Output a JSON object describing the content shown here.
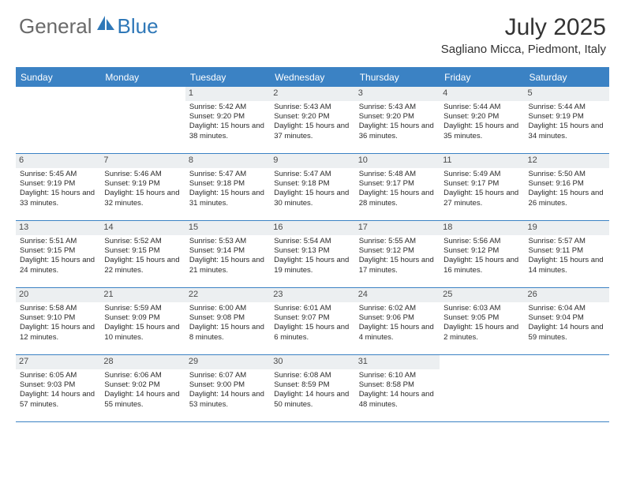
{
  "header": {
    "logo_general": "General",
    "logo_blue": "Blue",
    "month_title": "July 2025",
    "location": "Sagliano Micca, Piedmont, Italy"
  },
  "colors": {
    "header_bar": "#3b82c4",
    "logo_gray": "#6a6a6a",
    "logo_blue": "#2f78b8",
    "daynum_bg": "#eceff1",
    "text": "#2a2a2a"
  },
  "days_of_week": [
    "Sunday",
    "Monday",
    "Tuesday",
    "Wednesday",
    "Thursday",
    "Friday",
    "Saturday"
  ],
  "weeks": [
    [
      {
        "empty": true
      },
      {
        "empty": true
      },
      {
        "n": "1",
        "sunrise": "5:42 AM",
        "sunset": "9:20 PM",
        "daylight": "15 hours and 38 minutes."
      },
      {
        "n": "2",
        "sunrise": "5:43 AM",
        "sunset": "9:20 PM",
        "daylight": "15 hours and 37 minutes."
      },
      {
        "n": "3",
        "sunrise": "5:43 AM",
        "sunset": "9:20 PM",
        "daylight": "15 hours and 36 minutes."
      },
      {
        "n": "4",
        "sunrise": "5:44 AM",
        "sunset": "9:20 PM",
        "daylight": "15 hours and 35 minutes."
      },
      {
        "n": "5",
        "sunrise": "5:44 AM",
        "sunset": "9:19 PM",
        "daylight": "15 hours and 34 minutes."
      }
    ],
    [
      {
        "n": "6",
        "sunrise": "5:45 AM",
        "sunset": "9:19 PM",
        "daylight": "15 hours and 33 minutes."
      },
      {
        "n": "7",
        "sunrise": "5:46 AM",
        "sunset": "9:19 PM",
        "daylight": "15 hours and 32 minutes."
      },
      {
        "n": "8",
        "sunrise": "5:47 AM",
        "sunset": "9:18 PM",
        "daylight": "15 hours and 31 minutes."
      },
      {
        "n": "9",
        "sunrise": "5:47 AM",
        "sunset": "9:18 PM",
        "daylight": "15 hours and 30 minutes."
      },
      {
        "n": "10",
        "sunrise": "5:48 AM",
        "sunset": "9:17 PM",
        "daylight": "15 hours and 28 minutes."
      },
      {
        "n": "11",
        "sunrise": "5:49 AM",
        "sunset": "9:17 PM",
        "daylight": "15 hours and 27 minutes."
      },
      {
        "n": "12",
        "sunrise": "5:50 AM",
        "sunset": "9:16 PM",
        "daylight": "15 hours and 26 minutes."
      }
    ],
    [
      {
        "n": "13",
        "sunrise": "5:51 AM",
        "sunset": "9:15 PM",
        "daylight": "15 hours and 24 minutes."
      },
      {
        "n": "14",
        "sunrise": "5:52 AM",
        "sunset": "9:15 PM",
        "daylight": "15 hours and 22 minutes."
      },
      {
        "n": "15",
        "sunrise": "5:53 AM",
        "sunset": "9:14 PM",
        "daylight": "15 hours and 21 minutes."
      },
      {
        "n": "16",
        "sunrise": "5:54 AM",
        "sunset": "9:13 PM",
        "daylight": "15 hours and 19 minutes."
      },
      {
        "n": "17",
        "sunrise": "5:55 AM",
        "sunset": "9:12 PM",
        "daylight": "15 hours and 17 minutes."
      },
      {
        "n": "18",
        "sunrise": "5:56 AM",
        "sunset": "9:12 PM",
        "daylight": "15 hours and 16 minutes."
      },
      {
        "n": "19",
        "sunrise": "5:57 AM",
        "sunset": "9:11 PM",
        "daylight": "15 hours and 14 minutes."
      }
    ],
    [
      {
        "n": "20",
        "sunrise": "5:58 AM",
        "sunset": "9:10 PM",
        "daylight": "15 hours and 12 minutes."
      },
      {
        "n": "21",
        "sunrise": "5:59 AM",
        "sunset": "9:09 PM",
        "daylight": "15 hours and 10 minutes."
      },
      {
        "n": "22",
        "sunrise": "6:00 AM",
        "sunset": "9:08 PM",
        "daylight": "15 hours and 8 minutes."
      },
      {
        "n": "23",
        "sunrise": "6:01 AM",
        "sunset": "9:07 PM",
        "daylight": "15 hours and 6 minutes."
      },
      {
        "n": "24",
        "sunrise": "6:02 AM",
        "sunset": "9:06 PM",
        "daylight": "15 hours and 4 minutes."
      },
      {
        "n": "25",
        "sunrise": "6:03 AM",
        "sunset": "9:05 PM",
        "daylight": "15 hours and 2 minutes."
      },
      {
        "n": "26",
        "sunrise": "6:04 AM",
        "sunset": "9:04 PM",
        "daylight": "14 hours and 59 minutes."
      }
    ],
    [
      {
        "n": "27",
        "sunrise": "6:05 AM",
        "sunset": "9:03 PM",
        "daylight": "14 hours and 57 minutes."
      },
      {
        "n": "28",
        "sunrise": "6:06 AM",
        "sunset": "9:02 PM",
        "daylight": "14 hours and 55 minutes."
      },
      {
        "n": "29",
        "sunrise": "6:07 AM",
        "sunset": "9:00 PM",
        "daylight": "14 hours and 53 minutes."
      },
      {
        "n": "30",
        "sunrise": "6:08 AM",
        "sunset": "8:59 PM",
        "daylight": "14 hours and 50 minutes."
      },
      {
        "n": "31",
        "sunrise": "6:10 AM",
        "sunset": "8:58 PM",
        "daylight": "14 hours and 48 minutes."
      },
      {
        "empty": true
      },
      {
        "empty": true
      }
    ]
  ],
  "labels": {
    "sunrise_prefix": "Sunrise: ",
    "sunset_prefix": "Sunset: ",
    "daylight_prefix": "Daylight: "
  }
}
